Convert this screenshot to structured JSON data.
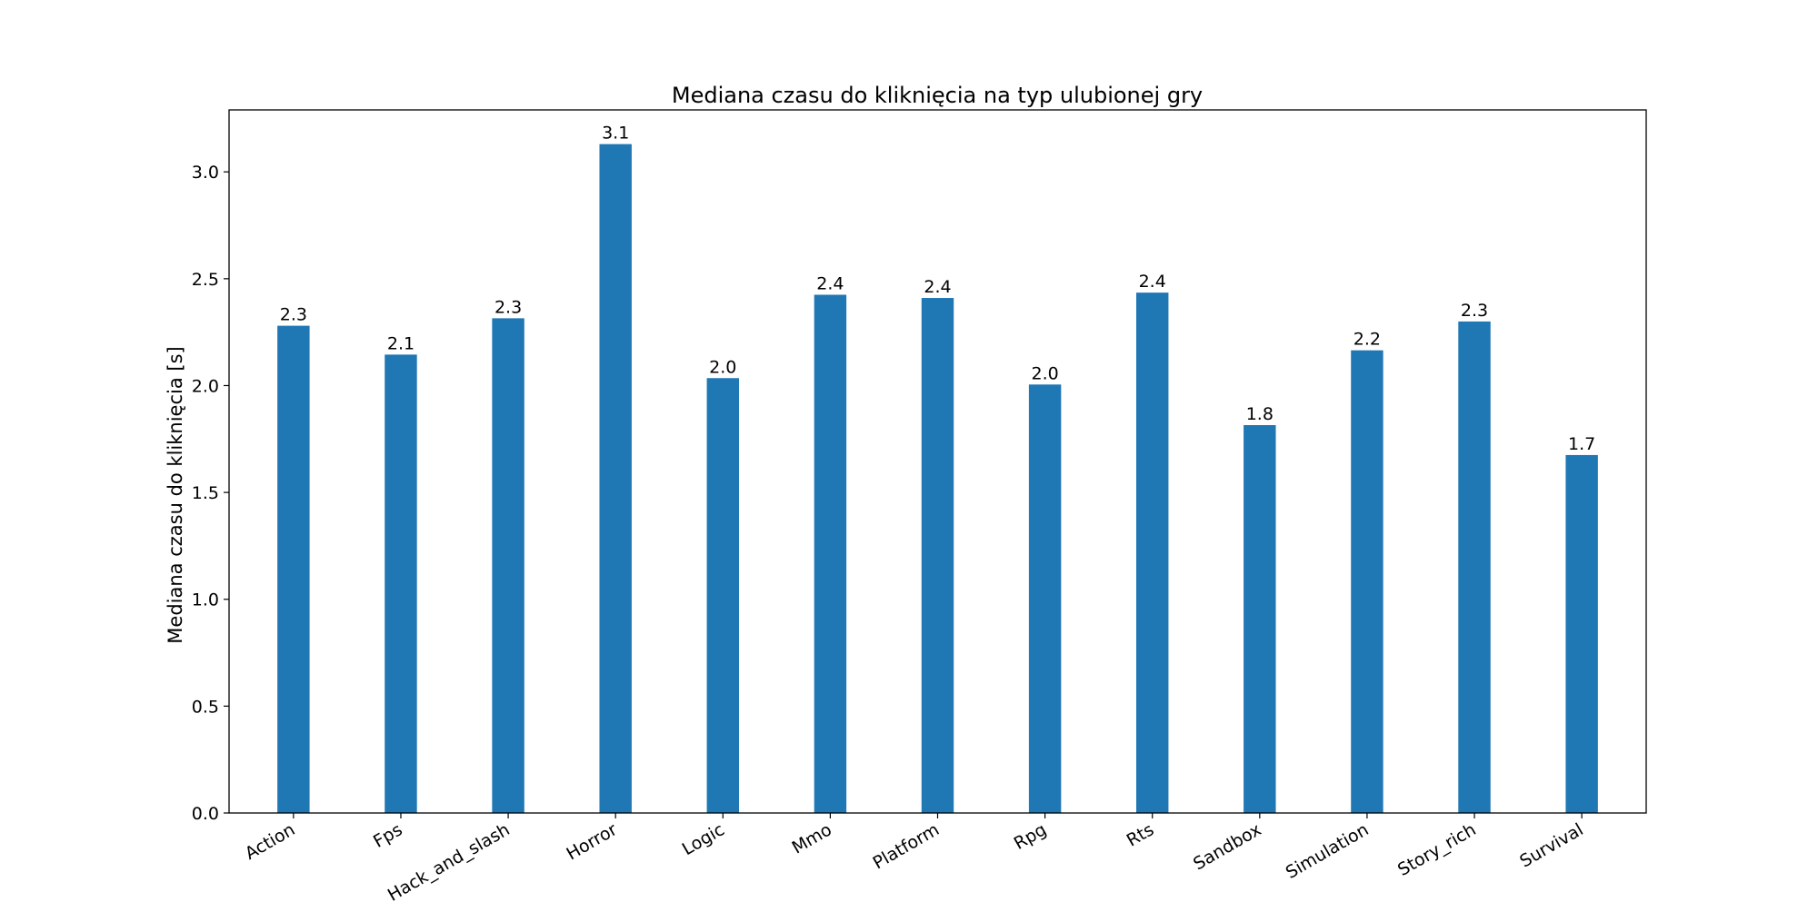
{
  "chart_data": {
    "type": "bar",
    "title": "Mediana czasu do kliknięcia na typ ulubionej gry",
    "xlabel": "",
    "ylabel": "Mediana czasu do kliknięcia [s]",
    "categories": [
      "Action",
      "Fps",
      "Hack_and_slash",
      "Horror",
      "Logic",
      "Mmo",
      "Platform",
      "Rpg",
      "Rts",
      "Sandbox",
      "Simulation",
      "Story_rich",
      "Survival"
    ],
    "values": [
      2.28,
      2.145,
      2.315,
      3.13,
      2.035,
      2.425,
      2.41,
      2.005,
      2.435,
      1.815,
      2.165,
      2.3,
      1.675
    ],
    "value_labels": [
      "2.3",
      "2.1",
      "2.3",
      "3.1",
      "2.0",
      "2.4",
      "2.4",
      "2.0",
      "2.4",
      "1.8",
      "2.2",
      "2.3",
      "1.7"
    ],
    "ylim": [
      0,
      3.29
    ],
    "yticks": [
      0.0,
      0.5,
      1.0,
      1.5,
      2.0,
      2.5,
      3.0
    ],
    "ytick_labels": [
      "0.0",
      "0.5",
      "1.0",
      "1.5",
      "2.0",
      "2.5",
      "3.0"
    ],
    "bar_color": "#1f77b4",
    "grid": false,
    "legend": "none"
  }
}
